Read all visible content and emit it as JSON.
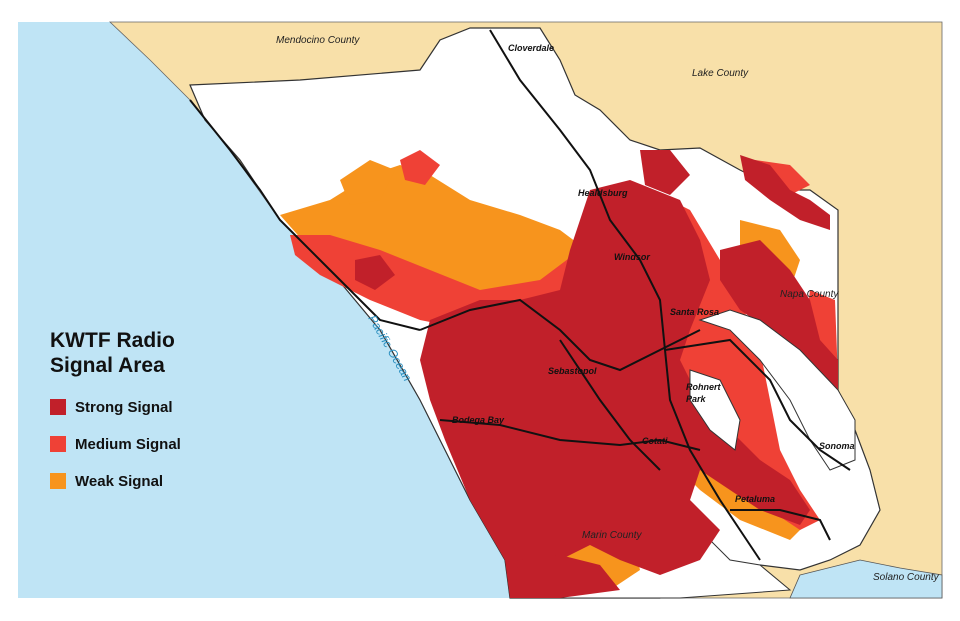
{
  "legend": {
    "title": "KWTF Radio\nSignal Area",
    "items": [
      {
        "label": "Strong Signal",
        "color": "#c1202a"
      },
      {
        "label": "Medium Signal",
        "color": "#ef4136"
      },
      {
        "label": "Weak Signal",
        "color": "#f7941d"
      }
    ]
  },
  "counties": {
    "mendocino": "Mendocino County",
    "lake": "Lake County",
    "napa": "Napa County",
    "solano": "Solano County",
    "marin": "Marin County"
  },
  "cities": {
    "cloverdale": "Cloverdale",
    "healdsburg": "Healdsburg",
    "windsor": "Windsor",
    "santa_rosa": "Santa Rosa",
    "sebastopol": "Sebastopol",
    "rohnert_park_1": "Rohnert",
    "rohnert_park_2": "Park",
    "bodega_bay": "Bodega Bay",
    "cotati": "Cotati",
    "petaluma": "Petaluma",
    "sonoma": "Sonoma"
  },
  "water": {
    "ocean": "Pacific Ocean"
  },
  "colors": {
    "ocean": "#bfe4f5",
    "land": "#f8e0a9",
    "county_fill": "#ffffff",
    "strong": "#c1202a",
    "medium": "#ef4136",
    "weak": "#f7941d"
  }
}
